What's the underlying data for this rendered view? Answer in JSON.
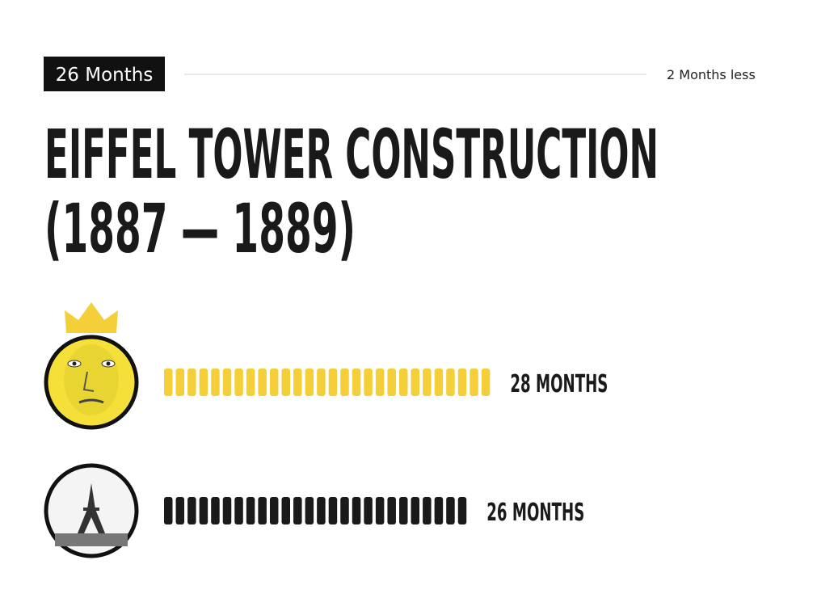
{
  "badge": "26 Months",
  "note": "2 Months less",
  "title_lines": [
    "EIFFEL TOWER CONSTRUCTION",
    "(1887 — 1889)"
  ],
  "rows": [
    {
      "value": 28,
      "value_label": "28 MONTHS",
      "color": "#f5cf3a"
    },
    {
      "value": 26,
      "value_label": "26 MONTHS",
      "color": "#1a1a1a"
    }
  ]
}
